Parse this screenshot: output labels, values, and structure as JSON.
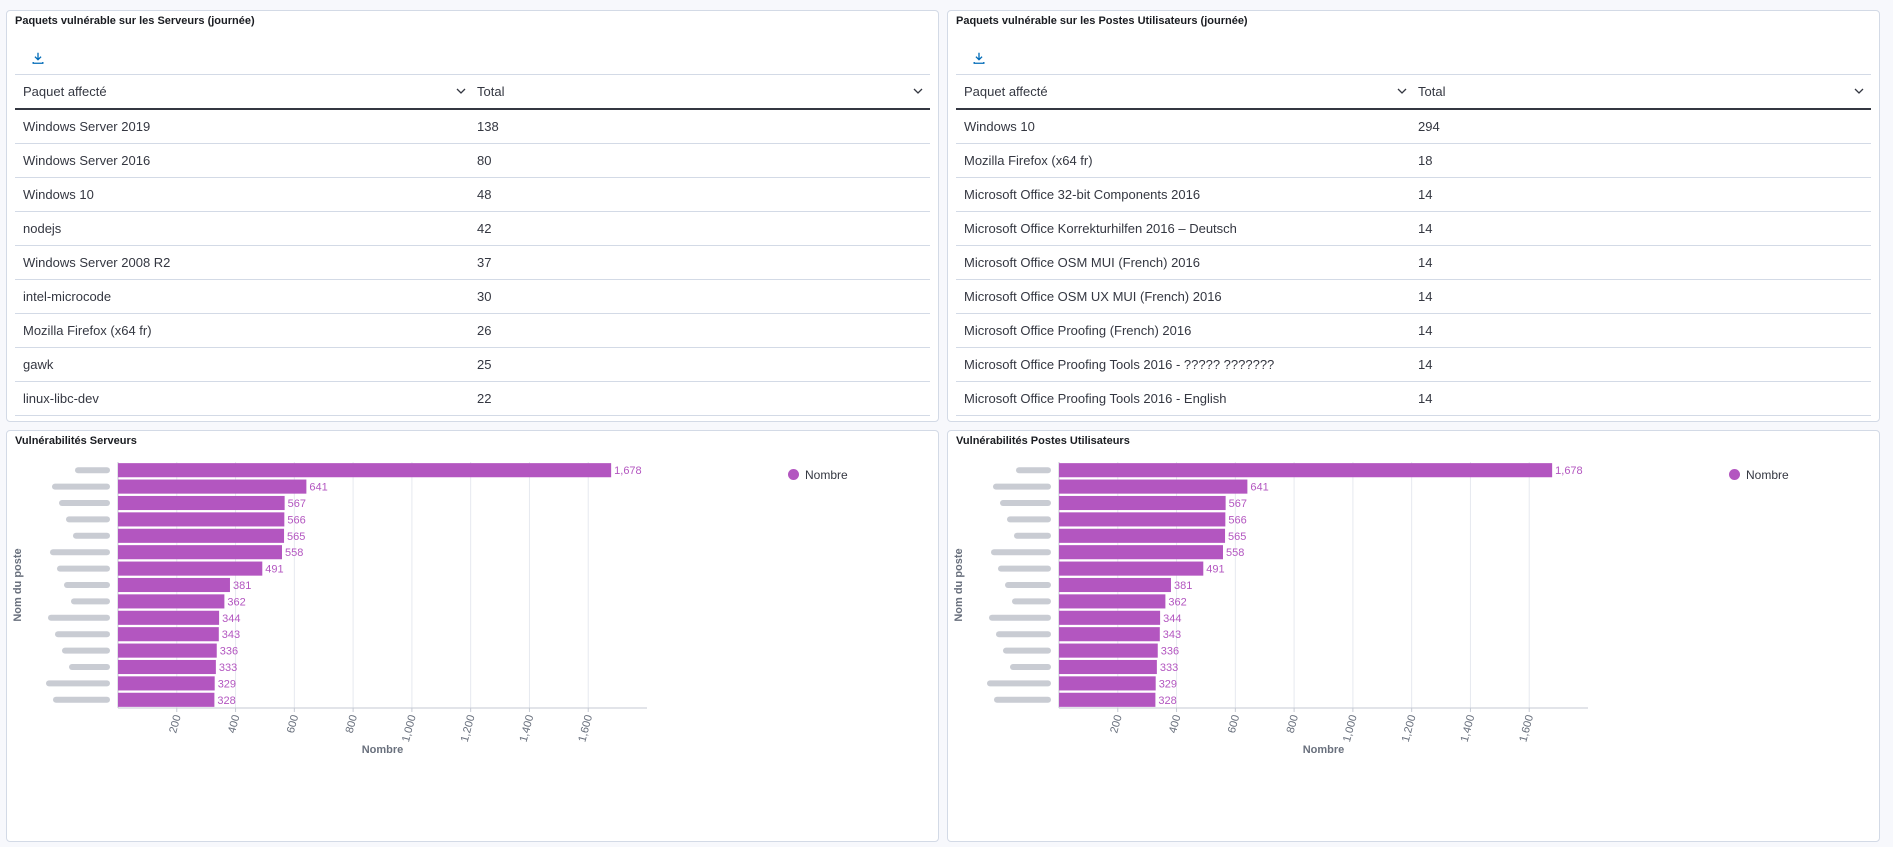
{
  "panels": {
    "servers_table": {
      "title": "Paquets vulnérable sur les Serveurs (journée)",
      "col1": "Paquet affecté",
      "col2": "Total",
      "rows": [
        [
          "Windows Server 2019",
          "138"
        ],
        [
          "Windows Server 2016",
          "80"
        ],
        [
          "Windows 10",
          "48"
        ],
        [
          "nodejs",
          "42"
        ],
        [
          "Windows Server 2008 R2",
          "37"
        ],
        [
          "intel-microcode",
          "30"
        ],
        [
          "Mozilla Firefox (x64 fr)",
          "26"
        ],
        [
          "gawk",
          "25"
        ],
        [
          "linux-libc-dev",
          "22"
        ]
      ]
    },
    "workstations_table": {
      "title": "Paquets vulnérable sur les Postes Utilisateurs (journée)",
      "col1": "Paquet affecté",
      "col2": "Total",
      "rows": [
        [
          "Windows 10",
          "294"
        ],
        [
          "Mozilla Firefox (x64 fr)",
          "18"
        ],
        [
          "Microsoft Office 32-bit Components 2016",
          "14"
        ],
        [
          "Microsoft Office Korrekturhilfen 2016 – Deutsch",
          "14"
        ],
        [
          "Microsoft Office OSM MUI (French) 2016",
          "14"
        ],
        [
          "Microsoft Office OSM UX MUI (French) 2016",
          "14"
        ],
        [
          "Microsoft Office Proofing (French) 2016",
          "14"
        ],
        [
          "Microsoft Office Proofing Tools 2016 - ????? ???????",
          "14"
        ],
        [
          "Microsoft Office Proofing Tools 2016 - English",
          "14"
        ]
      ]
    },
    "servers_chart": {
      "title": "Vulnérabilités Serveurs"
    },
    "workstations_chart": {
      "title": "Vulnérabilités Postes Utilisateurs"
    }
  },
  "icons": {
    "download": "download-icon",
    "sort": "chevron-down-icon"
  },
  "colors": {
    "bar": "#b356c0",
    "accent": "#006bb8",
    "border": "#d3dae6"
  },
  "chart_data": [
    {
      "type": "bar",
      "orientation": "horizontal",
      "title": "Vulnérabilités Serveurs",
      "xlabel": "Nombre",
      "ylabel": "Nom du poste",
      "legend": {
        "entries": [
          "Nombre"
        ],
        "position": "top-right"
      },
      "categories_obscured": true,
      "series": [
        {
          "name": "Nombre",
          "values": [
            1678,
            641,
            567,
            566,
            565,
            558,
            491,
            381,
            362,
            344,
            343,
            336,
            333,
            329,
            328
          ]
        }
      ],
      "value_labels": [
        "1,678",
        "641",
        "567",
        "566",
        "565",
        "558",
        "491",
        "381",
        "362",
        "344",
        "343",
        "336",
        "333",
        "329",
        "328"
      ],
      "x_ticks": [
        "200",
        "400",
        "600",
        "800",
        "1,000",
        "1,200",
        "1,400",
        "1,600"
      ],
      "xlim": [
        0,
        1800
      ],
      "grid": true
    },
    {
      "type": "bar",
      "orientation": "horizontal",
      "title": "Vulnérabilités Postes Utilisateurs",
      "xlabel": "Nombre",
      "ylabel": "Nom du poste",
      "legend": {
        "entries": [
          "Nombre"
        ],
        "position": "top-right"
      },
      "categories_obscured": true,
      "series": [
        {
          "name": "Nombre",
          "values": [
            1678,
            641,
            567,
            566,
            565,
            558,
            491,
            381,
            362,
            344,
            343,
            336,
            333,
            329,
            328
          ]
        }
      ],
      "value_labels": [
        "1,678",
        "641",
        "567",
        "566",
        "565",
        "558",
        "491",
        "381",
        "362",
        "344",
        "343",
        "336",
        "333",
        "329",
        "328"
      ],
      "x_ticks": [
        "200",
        "400",
        "600",
        "800",
        "1,000",
        "1,200",
        "1,400",
        "1,600"
      ],
      "xlim": [
        0,
        1800
      ],
      "grid": true
    }
  ]
}
